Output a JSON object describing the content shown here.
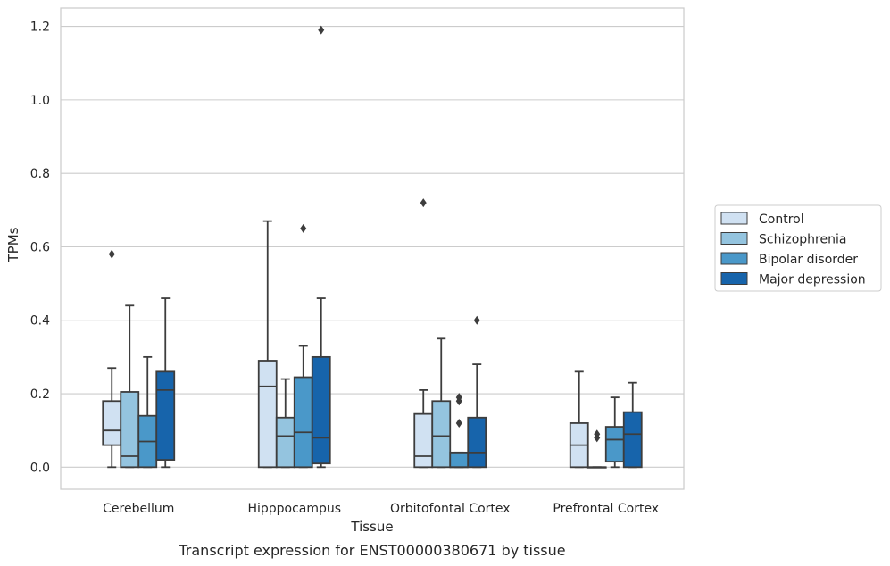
{
  "chart_data": {
    "type": "box",
    "xlabel": "Tissue",
    "ylabel": "TPMs",
    "caption": "Transcript expression for ENST00000380671 by tissue",
    "categories": [
      "Cerebellum",
      "Hipppocampus",
      "Orbitofontal Cortex",
      "Prefrontal Cortex"
    ],
    "ylim": [
      -0.06,
      1.25
    ],
    "yticks": [
      0.0,
      0.2,
      0.4,
      0.6,
      0.8,
      1.0,
      1.2
    ],
    "ytick_labels": [
      "0.0",
      "0.2",
      "0.4",
      "0.6",
      "0.8",
      "1.0",
      "1.2"
    ],
    "grid": "horizontal",
    "legend_position": "right",
    "series": [
      {
        "name": "Control",
        "color": "#d0e1f2",
        "boxes": [
          {
            "min": 0.0,
            "q1": 0.06,
            "median": 0.1,
            "q3": 0.18,
            "max": 0.27,
            "outliers": [
              0.58
            ]
          },
          {
            "min": 0.0,
            "q1": 0.0,
            "median": 0.22,
            "q3": 0.29,
            "max": 0.67,
            "outliers": []
          },
          {
            "min": 0.0,
            "q1": 0.0,
            "median": 0.03,
            "q3": 0.145,
            "max": 0.21,
            "outliers": [
              0.72
            ]
          },
          {
            "min": 0.0,
            "q1": 0.0,
            "median": 0.06,
            "q3": 0.12,
            "max": 0.26,
            "outliers": []
          }
        ]
      },
      {
        "name": "Schizophrenia",
        "color": "#94c4df",
        "boxes": [
          {
            "min": 0.0,
            "q1": 0.0,
            "median": 0.03,
            "q3": 0.205,
            "max": 0.44,
            "outliers": []
          },
          {
            "min": 0.0,
            "q1": 0.0,
            "median": 0.085,
            "q3": 0.135,
            "max": 0.24,
            "outliers": []
          },
          {
            "min": 0.0,
            "q1": 0.0,
            "median": 0.085,
            "q3": 0.18,
            "max": 0.35,
            "outliers": []
          },
          {
            "min": 0.0,
            "q1": 0.0,
            "median": 0.0,
            "q3": 0.0,
            "max": 0.0,
            "outliers": [
              0.08,
              0.09
            ]
          }
        ]
      },
      {
        "name": "Bipolar disorder",
        "color": "#4a98c9",
        "boxes": [
          {
            "min": 0.0,
            "q1": 0.0,
            "median": 0.07,
            "q3": 0.14,
            "max": 0.3,
            "outliers": []
          },
          {
            "min": 0.0,
            "q1": 0.0,
            "median": 0.095,
            "q3": 0.245,
            "max": 0.33,
            "outliers": [
              0.65
            ]
          },
          {
            "min": 0.0,
            "q1": 0.0,
            "median": 0.0,
            "q3": 0.04,
            "max": 0.04,
            "outliers": [
              0.12,
              0.18,
              0.19
            ]
          },
          {
            "min": 0.0,
            "q1": 0.015,
            "median": 0.075,
            "q3": 0.11,
            "max": 0.19,
            "outliers": []
          }
        ]
      },
      {
        "name": "Major depression",
        "color": "#1764ab",
        "boxes": [
          {
            "min": 0.0,
            "q1": 0.02,
            "median": 0.21,
            "q3": 0.26,
            "max": 0.46,
            "outliers": []
          },
          {
            "min": 0.0,
            "q1": 0.01,
            "median": 0.08,
            "q3": 0.3,
            "max": 0.46,
            "outliers": [
              1.19
            ]
          },
          {
            "min": 0.0,
            "q1": 0.0,
            "median": 0.04,
            "q3": 0.135,
            "max": 0.28,
            "outliers": [
              0.4
            ]
          },
          {
            "min": 0.0,
            "q1": 0.0,
            "median": 0.09,
            "q3": 0.15,
            "max": 0.23,
            "outliers": []
          }
        ]
      }
    ]
  }
}
